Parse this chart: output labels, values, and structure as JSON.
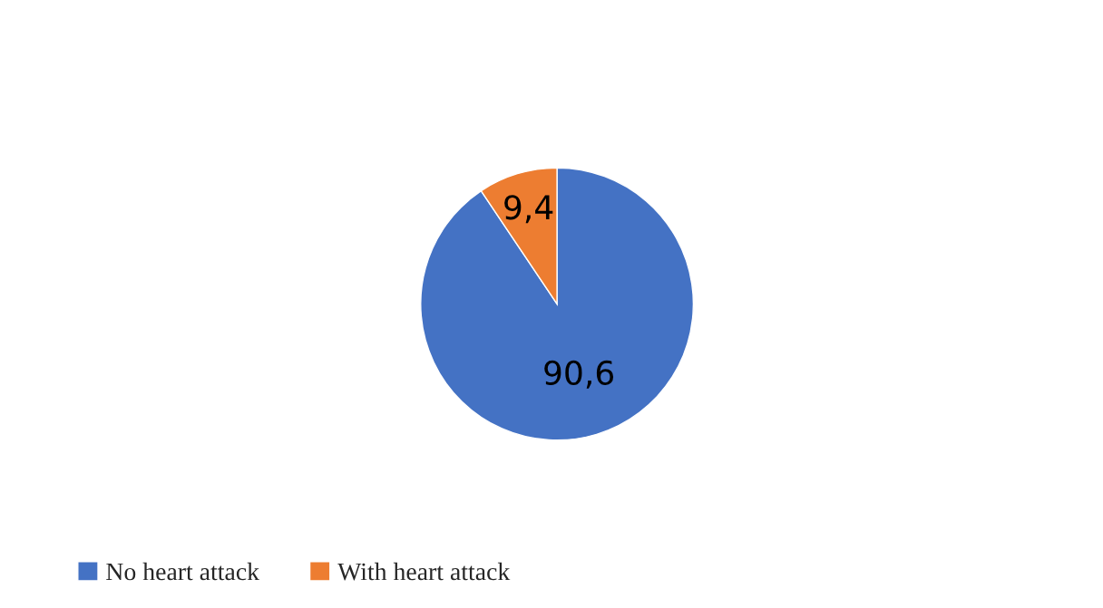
{
  "chart_data": {
    "type": "pie",
    "categories": [
      "No heart attack",
      "With heart attack"
    ],
    "values": [
      90.6,
      9.4
    ],
    "value_labels": [
      "90,6",
      "9,4"
    ],
    "colors": [
      "#4472c4",
      "#ed7d31"
    ],
    "legend": "bottom"
  }
}
